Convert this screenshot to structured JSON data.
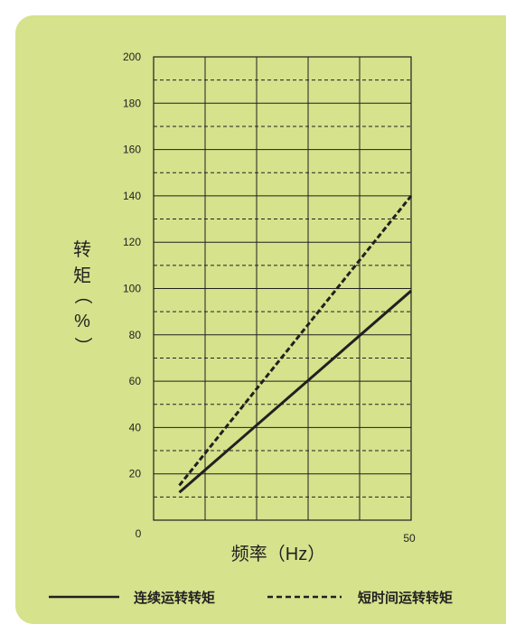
{
  "chart_data": {
    "type": "line",
    "xlabel": "频率（Hz）",
    "ylabel_chars": [
      "转",
      "矩",
      "（",
      "%",
      "）"
    ],
    "x_tick_labels": [
      "0",
      "50"
    ],
    "y_tick_labels": [
      "20",
      "40",
      "60",
      "80",
      "100",
      "120",
      "140",
      "160",
      "180",
      "200"
    ],
    "xlim": [
      0,
      50
    ],
    "ylim": [
      0,
      200
    ],
    "grid": true,
    "series": [
      {
        "name": "连续运转转矩",
        "style": "solid",
        "x": [
          5,
          50
        ],
        "y": [
          12,
          99
        ]
      },
      {
        "name": "短时间运转转矩",
        "style": "dashed",
        "x": [
          5,
          50
        ],
        "y": [
          15,
          140
        ]
      }
    ],
    "legend_position": "bottom"
  },
  "colors": {
    "panel": "#d6e28c",
    "ink": "#231f20"
  }
}
